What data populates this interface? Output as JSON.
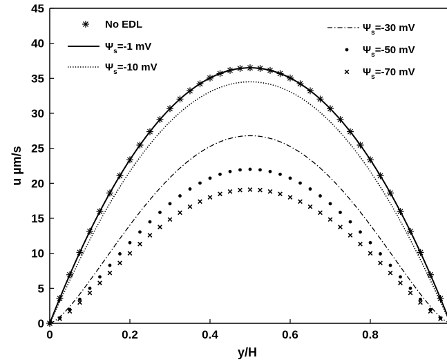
{
  "chart_data": {
    "type": "line",
    "title": "",
    "xlabel": "y/H",
    "ylabel": "u    µm/s",
    "xlim": [
      0,
      1
    ],
    "ylim": [
      0,
      45
    ],
    "xticks": [
      0,
      0.2,
      0.4,
      0.6,
      0.8
    ],
    "xtick_labels": [
      "0",
      "0.2",
      "0.4",
      "0.6",
      "0.8"
    ],
    "yticks": [
      0,
      5,
      10,
      15,
      20,
      25,
      30,
      35,
      40,
      45
    ],
    "ytick_labels": [
      "0",
      "5",
      "10",
      "15",
      "20",
      "25",
      "30",
      "35",
      "40",
      "45"
    ],
    "grid": false,
    "legend_position": "top",
    "series": [
      {
        "name": "No EDL",
        "label_main": "No EDL",
        "label_sub": "",
        "label_tail": "",
        "style": "asterisk-markers",
        "peak": 36.5,
        "profile": "parabolic"
      },
      {
        "name": "Ψs=-1 mV",
        "label_main": "Ψ",
        "label_sub": "s",
        "label_tail": "=-1 mV",
        "style": "solid",
        "peak": 36.5,
        "profile": "parabolic"
      },
      {
        "name": "Ψs=-10 mV",
        "label_main": "Ψ",
        "label_sub": "s",
        "label_tail": "=-10 mV",
        "style": "dotted",
        "peak": 34.5,
        "profile": "near-parabolic"
      },
      {
        "name": "Ψs=-30 mV",
        "label_main": "Ψ",
        "label_sub": "s",
        "label_tail": "=-30 mV",
        "style": "dash-dot",
        "peak": 26.8,
        "profile": "flattened"
      },
      {
        "name": "Ψs=-50 mV",
        "label_main": "Ψ",
        "label_sub": "s",
        "label_tail": "=-50 mV",
        "style": "dot-markers",
        "peak": 22.0,
        "profile": "flattened"
      },
      {
        "name": "Ψs=-70 mV",
        "label_main": "Ψ",
        "label_sub": "s",
        "label_tail": "=-70 mV",
        "style": "x-markers",
        "peak": 19.1,
        "profile": "flattened"
      }
    ]
  }
}
